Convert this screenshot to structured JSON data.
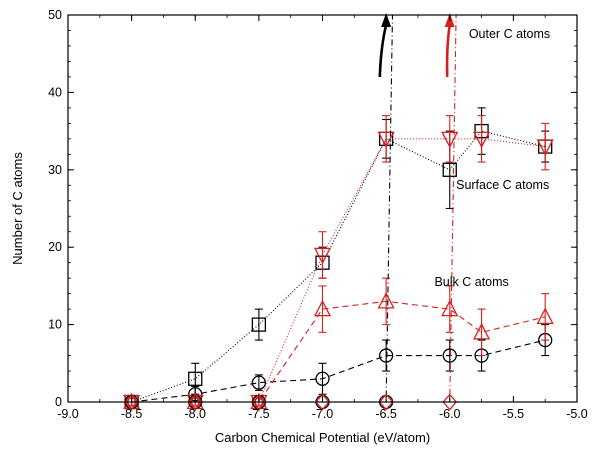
{
  "chart_data": {
    "type": "line",
    "title": "",
    "xlabel": "Carbon Chemical Potential (eV/atom)",
    "ylabel": "Number of C atoms",
    "xlim": [
      -9.0,
      -5.0
    ],
    "ylim": [
      0,
      50
    ],
    "x_ticks": [
      -9.0,
      -8.5,
      -8.0,
      -7.5,
      -7.0,
      -6.5,
      -6.0,
      -5.5,
      -5.0
    ],
    "x_tick_labels": [
      "-9.0",
      "-8.5",
      "-8.0",
      "-7.5",
      "-7.0",
      "-6.5",
      "-6.0",
      "-5.5",
      "-5.0"
    ],
    "y_ticks": [
      0,
      10,
      20,
      30,
      40,
      50
    ],
    "y_tick_labels": [
      "0",
      "10",
      "20",
      "30",
      "40",
      "50"
    ],
    "grid": false,
    "legend": "none",
    "annotations": [
      {
        "text": "Outer C atoms",
        "x": -5.85,
        "y": 47
      },
      {
        "text": "Surface C atoms",
        "x": -5.95,
        "y": 27.5
      },
      {
        "text": "Bulk C atoms",
        "x": -6.12,
        "y": 15
      }
    ],
    "series": [
      {
        "color": "#000000",
        "marker": "square",
        "dash": "1,2",
        "x": [
          -8.5,
          -8.0,
          -7.5,
          -7.0,
          -6.5,
          -6.0,
          -5.75,
          -5.25
        ],
        "y": [
          0,
          3,
          10,
          18,
          34,
          30,
          35,
          33
        ],
        "err": [
          0.5,
          2,
          2,
          2,
          2.5,
          5,
          3,
          2
        ]
      },
      {
        "color": "#000000",
        "marker": "circle",
        "dash": "6,4",
        "x": [
          -8.5,
          -8.0,
          -7.5,
          -7.0,
          -6.5,
          -6.0,
          -5.75,
          -5.25
        ],
        "y": [
          0,
          1,
          2.5,
          3,
          6,
          6,
          6,
          8
        ],
        "err": [
          0.5,
          1,
          1,
          2,
          2,
          2,
          2,
          2
        ]
      },
      {
        "color": "#d42020",
        "marker": "triangle-down",
        "dash": "1,2",
        "x": [
          -8.5,
          -8.0,
          -7.5,
          -7.0,
          -6.5,
          -6.0,
          -5.75,
          -5.25
        ],
        "y": [
          0,
          0,
          0,
          19,
          34,
          34,
          34,
          33
        ],
        "err": [
          0.5,
          0.5,
          0.5,
          3,
          3,
          3,
          3,
          3
        ]
      },
      {
        "color": "#d42020",
        "marker": "triangle-up",
        "dash": "6,4",
        "x": [
          -8.5,
          -8.0,
          -7.5,
          -7.0,
          -6.5,
          -6.0,
          -5.75,
          -5.25
        ],
        "y": [
          0,
          0,
          0,
          12,
          13,
          12,
          9,
          11
        ],
        "err": [
          0.5,
          0.5,
          0.5,
          3,
          3,
          3,
          3,
          3
        ]
      },
      {
        "color": "#000000",
        "marker": "circle",
        "dash": "6,3,1,3",
        "x": [
          -8.5,
          -8.0,
          -7.5,
          -7.0,
          -6.5,
          -6.45
        ],
        "y": [
          0,
          0,
          0,
          0,
          0,
          50
        ]
      },
      {
        "color": "#d42020",
        "marker": "diamond",
        "dash": "6,3,1,3",
        "x": [
          -8.5,
          -8.0,
          -7.5,
          -7.0,
          -6.5,
          -6.0,
          -5.95
        ],
        "y": [
          0,
          0,
          0,
          0,
          0,
          0,
          50
        ]
      }
    ],
    "arrows": [
      {
        "color": "#000000",
        "x_tail": -6.55,
        "y_tail": 42,
        "x_head": -6.5,
        "y_head": 50
      },
      {
        "color": "#d42020",
        "x_tail": -6.02,
        "y_tail": 42,
        "x_head": -6.0,
        "y_head": 50
      }
    ]
  }
}
